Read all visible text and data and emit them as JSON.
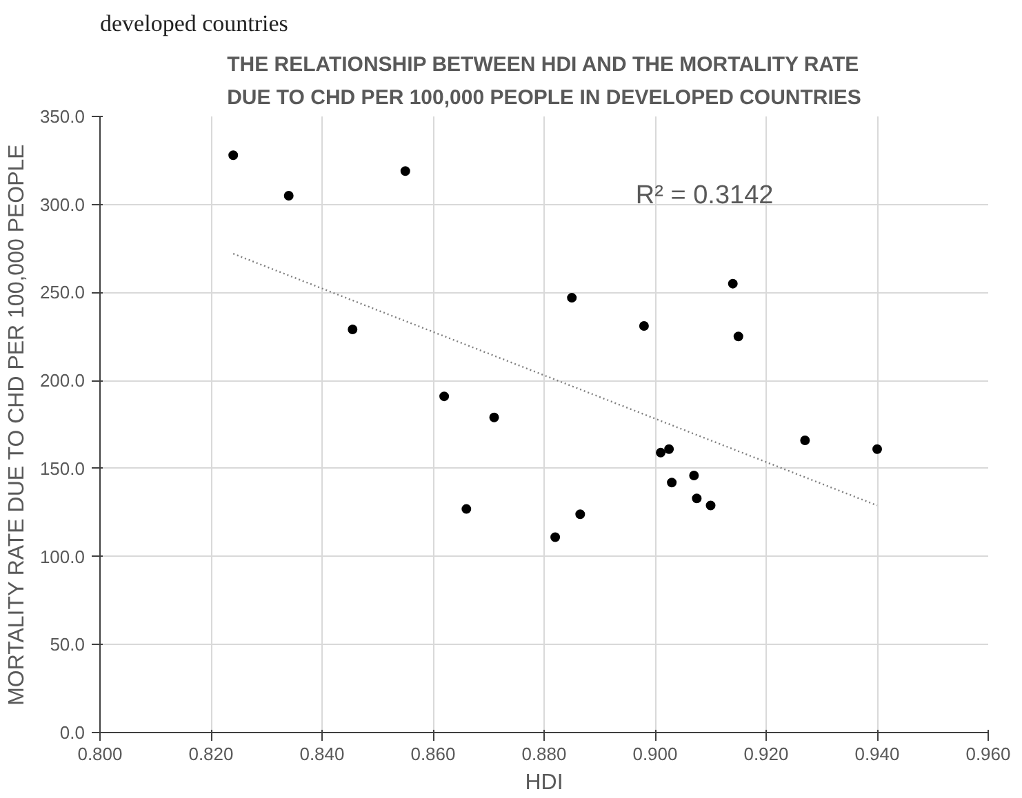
{
  "chart_data": {
    "type": "scatter",
    "title": "THE RELATIONSHIP BETWEEN HDI AND THE MORTALITY RATE\nDUE TO CHD PER 100,000 PEOPLE IN DEVELOPED COUNTRIES",
    "xlabel": "HDI",
    "ylabel": "MORTALITY RATE DUE TO CHD PER 100,000 PEOPLE",
    "annotations": [
      "R² = 0.3142",
      "developed countries"
    ],
    "series": [
      {
        "color": "#000000",
        "x": [
          0.824,
          0.834,
          0.855,
          0.8455,
          0.862,
          0.871,
          0.866,
          0.885,
          0.898,
          0.914,
          0.915,
          0.901,
          0.9025,
          0.903,
          0.907,
          0.9075,
          0.91,
          0.927,
          0.94,
          0.8865,
          0.882
        ],
        "values": [
          328,
          305,
          319,
          229,
          191,
          179,
          127,
          247,
          231,
          255,
          225,
          159,
          161,
          142,
          146,
          133,
          129,
          166,
          161,
          124,
          111
        ]
      },
      {
        "type": "line",
        "color": "#7f7f7f",
        "line_style": "dotted",
        "marker": "none",
        "x": [
          0.824,
          0.94
        ],
        "values": [
          272,
          129
        ]
      }
    ],
    "marker": "circle",
    "grid": true,
    "xlim": [
      0.8,
      0.96
    ],
    "xticks": [
      {
        "value": 0.8,
        "label": "0.800"
      },
      {
        "value": 0.82,
        "label": "0.820"
      },
      {
        "value": 0.84,
        "label": "0.840"
      },
      {
        "value": 0.86,
        "label": "0.860"
      },
      {
        "value": 0.88,
        "label": "0.880"
      },
      {
        "value": 0.9,
        "label": "0.900"
      },
      {
        "value": 0.92,
        "label": "0.920"
      },
      {
        "value": 0.94,
        "label": "0.940"
      },
      {
        "value": 0.96,
        "label": "0.960"
      }
    ],
    "ylim": [
      0,
      350
    ],
    "yticks": [
      {
        "value": 0,
        "label": "0.0"
      },
      {
        "value": 50,
        "label": "50.0"
      },
      {
        "value": 100,
        "label": "100.0"
      },
      {
        "value": 150,
        "label": "150.0"
      },
      {
        "value": 200,
        "label": "200.0"
      },
      {
        "value": 250,
        "label": "250.0"
      },
      {
        "value": 300,
        "label": "300.0"
      },
      {
        "value": 350,
        "label": "350.0"
      }
    ]
  }
}
